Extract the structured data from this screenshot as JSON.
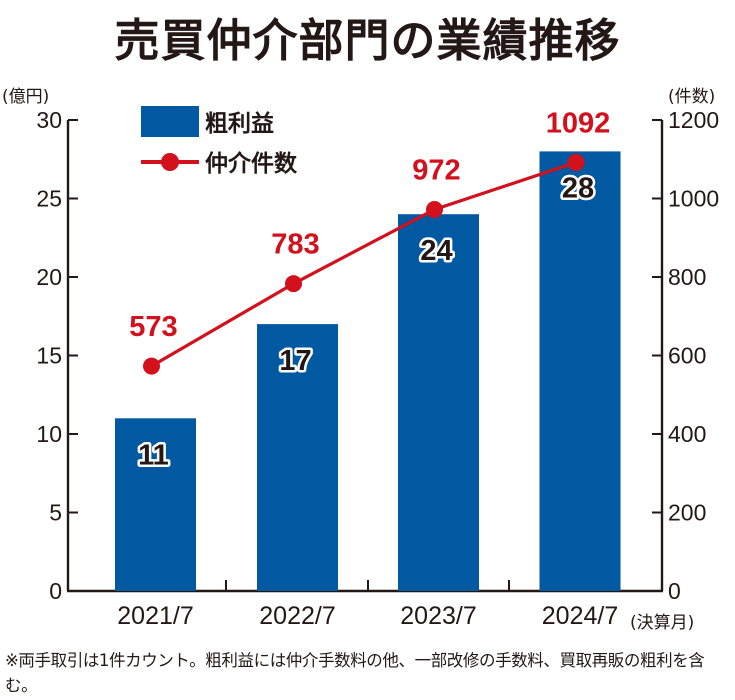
{
  "title": "売買仲介部門の業績推移",
  "note": "※両手取引は1件カウント。粗利益には仲介手数料の他、一部改修の手数料、買取再販の粗利を含む。",
  "colors": {
    "bar": "#0059A1",
    "line": "#D2111D",
    "axis": "#231815"
  },
  "chart_data": {
    "type": "bar",
    "title": "売買仲介部門の業績推移",
    "categories": [
      "2021/7",
      "2022/7",
      "2023/7",
      "2024/7"
    ],
    "xlabel_suffix": "(決算月)",
    "left_axis": {
      "unit": "(億円)",
      "ylim": [
        0,
        30
      ],
      "ticks": [
        "0",
        "5",
        "10",
        "15",
        "20",
        "25",
        "30"
      ]
    },
    "right_axis": {
      "unit": "(件数)",
      "ylim": [
        0,
        1200
      ],
      "ticks": [
        "0",
        "200",
        "400",
        "600",
        "800",
        "1000",
        "1200"
      ]
    },
    "series": [
      {
        "name": "粗利益",
        "type": "bar",
        "axis": "left",
        "values": [
          11,
          17,
          24,
          28
        ],
        "labels": [
          "11",
          "17",
          "24",
          "28"
        ]
      },
      {
        "name": "仲介件数",
        "type": "line",
        "axis": "right",
        "values": [
          573,
          783,
          972,
          1092
        ],
        "labels": [
          "573",
          "783",
          "972",
          "1092"
        ]
      }
    ],
    "legend": "top-left",
    "grid": false
  }
}
